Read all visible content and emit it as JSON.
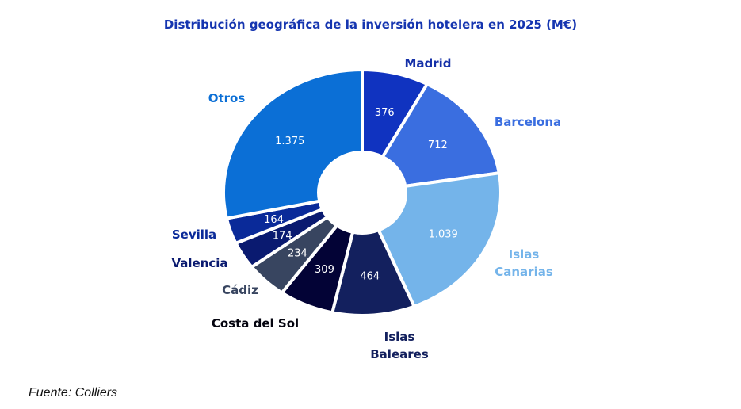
{
  "chart_data": {
    "type": "pie",
    "donut": true,
    "title": "Distribución geográfica de la inversión hotelera en 2025 (M€)",
    "slices": [
      {
        "label": "Madrid",
        "value": 376,
        "value_label": "376",
        "color": "#1033c0",
        "label_color": "#1530a8"
      },
      {
        "label": "Barcelona",
        "value": 712,
        "value_label": "712",
        "color": "#3a6ee0",
        "label_color": "#3a6ee0"
      },
      {
        "label": "Islas Canarias",
        "value": 1039,
        "value_label": "1.039",
        "color": "#74b4ea",
        "label_color": "#74b4ea"
      },
      {
        "label": "Islas Baleares",
        "value": 464,
        "value_label": "464",
        "color": "#13205e",
        "label_color": "#13205e"
      },
      {
        "label": "Costa del Sol",
        "value": 309,
        "value_label": "309",
        "color": "#030336",
        "label_color": "#050510"
      },
      {
        "label": "Cádiz",
        "value": 234,
        "value_label": "234",
        "color": "#384560",
        "label_color": "#384560"
      },
      {
        "label": "Valencia",
        "value": 174,
        "value_label": "174",
        "color": "#0a1a70",
        "label_color": "#0a1a70"
      },
      {
        "label": "Sevilla",
        "value": 164,
        "value_label": "164",
        "color": "#0a2a99",
        "label_color": "#0a2a99"
      },
      {
        "label": "Otros",
        "value": 1375,
        "value_label": "1.375",
        "color": "#0b6fd6",
        "label_color": "#0b6fd6"
      }
    ],
    "legend": "outside labels"
  },
  "source": "Fuente: Colliers"
}
